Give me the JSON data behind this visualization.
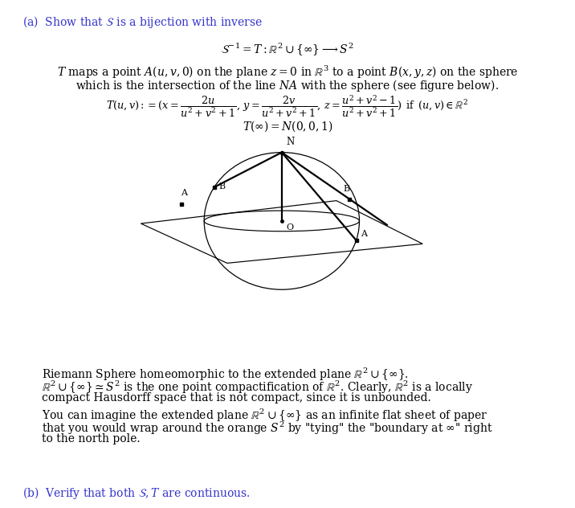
{
  "bg_color": "#ffffff",
  "text_color": "#000000",
  "heading_color": "#3333cc",
  "title_a": "(a)  Show that $\\mathcal{S}$ is a bijection with inverse",
  "line1": "$\\mathcal{S}^{-1} = T : \\mathbb{R}^2 \\cup \\{\\infty\\} \\longrightarrow S^2$",
  "line2": "$T$ maps a point $A(u, v, 0)$ on the plane $z = 0$ in $\\mathbb{R}^3$ to a point $B(x, y, z)$ on the sphere",
  "line3": "which is the intersection of the line $NA$ with the sphere (see figure below).",
  "line4a": "$T(u,v) := (x = \\dfrac{2u}{u^2+v^2+1},\\, y = \\dfrac{2v}{u^2+v^2+1},\\, z = \\dfrac{u^2+v^2-1}{u^2+v^2+1})\\,$ if $\\,(u,v) \\in \\mathbb{R}^2$",
  "line4b": "$T(\\infty) = N(0,0,1)$",
  "riemann_line": "Riemann Sphere homeomorphic to the extended plane $\\mathbb{R}^2 \\cup \\{\\infty\\}$.",
  "para1_line1": "$\\mathbb{R}^2 \\cup \\{\\infty\\} \\simeq S^2$ is the one point compactification of $\\mathbb{R}^2$. Clearly, $\\mathbb{R}^2$ is a locally",
  "para1_line2": "compact Hausdorff space that is not compact, since it is unbounded.",
  "para2_line1": "You can imagine the extended plane $\\mathbb{R}^2 \\cup \\{\\infty\\}$ as an infinite flat sheet of paper",
  "para2_line2": "that you would wrap around the orange $S^2$ by \"tying\" the \"boundary at $\\infty$\" right",
  "para2_line3": "to the north pole.",
  "title_b": "(b)  Verify that both $\\mathcal{S}, T$ are continuous."
}
